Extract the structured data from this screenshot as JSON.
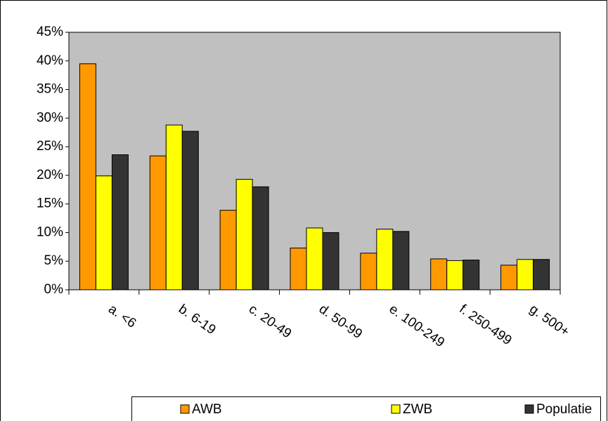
{
  "chart_data": {
    "type": "bar",
    "categories": [
      "a. <6",
      "b. 6-19",
      "c. 20-49",
      "d. 50-99",
      "e. 100-249",
      "f. 250-499",
      "g. 500+"
    ],
    "series": [
      {
        "name": "AWB",
        "color": "#ff9900",
        "values": [
          39.5,
          23.4,
          13.9,
          7.3,
          6.4,
          5.4,
          4.3
        ]
      },
      {
        "name": "ZWB",
        "color": "#ffff00",
        "values": [
          19.9,
          28.8,
          19.3,
          10.8,
          10.6,
          5.1,
          5.3
        ]
      },
      {
        "name": "Populatie",
        "color": "#333333",
        "values": [
          23.6,
          27.7,
          18.0,
          10.0,
          10.2,
          5.2,
          5.3
        ]
      }
    ],
    "ylim": [
      0,
      45
    ],
    "yticks": [
      {
        "value": 0,
        "label": "0%"
      },
      {
        "value": 5,
        "label": "5%"
      },
      {
        "value": 10,
        "label": "10%"
      },
      {
        "value": 15,
        "label": "15%"
      },
      {
        "value": 20,
        "label": "20%"
      },
      {
        "value": 25,
        "label": "25%"
      },
      {
        "value": 30,
        "label": "30%"
      },
      {
        "value": 35,
        "label": "35%"
      },
      {
        "value": 40,
        "label": "40%"
      },
      {
        "value": 45,
        "label": "45%"
      }
    ],
    "grid": false,
    "plot_background": "#c0c0c0",
    "legend": "bottom"
  }
}
